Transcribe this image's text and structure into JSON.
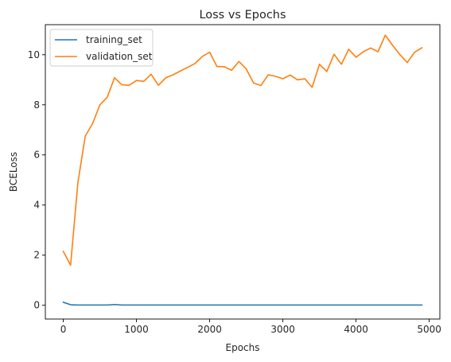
{
  "chart_data": {
    "type": "line",
    "title": "Loss vs Epochs",
    "xlabel": "Epochs",
    "ylabel": "BCELoss",
    "xlim": [
      -245,
      5145
    ],
    "ylim": [
      -0.55,
      11.2
    ],
    "xticks": [
      0,
      1000,
      2000,
      3000,
      4000,
      5000
    ],
    "yticks": [
      0,
      2,
      4,
      6,
      8,
      10
    ],
    "grid": false,
    "legend_position": "top-left",
    "x": [
      0,
      100,
      200,
      300,
      400,
      500,
      600,
      700,
      800,
      900,
      1000,
      1100,
      1200,
      1300,
      1400,
      1500,
      1600,
      1700,
      1800,
      1900,
      2000,
      2100,
      2200,
      2300,
      2400,
      2500,
      2600,
      2700,
      2800,
      2900,
      3000,
      3100,
      3200,
      3300,
      3400,
      3500,
      3600,
      3700,
      3800,
      3900,
      4000,
      4100,
      4200,
      4300,
      4400,
      4500,
      4600,
      4700,
      4800,
      4900
    ],
    "series": [
      {
        "name": "training_set",
        "color": "#1f77b4",
        "values": [
          0.12,
          0.02,
          0.01,
          0.01,
          0.01,
          0.01,
          0.01,
          0.03,
          0.01,
          0.01,
          0.01,
          0.01,
          0.01,
          0.01,
          0.01,
          0.01,
          0.01,
          0.01,
          0.01,
          0.01,
          0.01,
          0.01,
          0.01,
          0.01,
          0.01,
          0.01,
          0.01,
          0.01,
          0.01,
          0.01,
          0.01,
          0.01,
          0.01,
          0.01,
          0.01,
          0.01,
          0.01,
          0.01,
          0.01,
          0.01,
          0.01,
          0.01,
          0.01,
          0.01,
          0.01,
          0.01,
          0.01,
          0.01,
          0.01,
          0.01
        ]
      },
      {
        "name": "validation_set",
        "color": "#ff7f0e",
        "values": [
          2.15,
          1.6,
          4.9,
          6.75,
          7.25,
          8.0,
          8.3,
          9.08,
          8.8,
          8.78,
          8.97,
          8.94,
          9.22,
          8.78,
          9.08,
          9.2,
          9.35,
          9.5,
          9.65,
          9.93,
          10.1,
          9.53,
          9.52,
          9.38,
          9.73,
          9.43,
          8.87,
          8.77,
          9.2,
          9.14,
          9.04,
          9.19,
          9.0,
          9.04,
          8.7,
          9.62,
          9.33,
          10.02,
          9.62,
          10.22,
          9.9,
          10.12,
          10.27,
          10.12,
          10.78,
          10.37,
          10.0,
          9.69,
          10.1,
          10.28
        ]
      }
    ]
  }
}
